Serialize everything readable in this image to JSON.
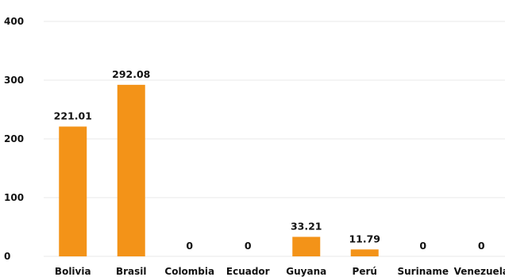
{
  "chart_data": {
    "type": "bar",
    "title": "",
    "xlabel": "",
    "ylabel": "",
    "categories": [
      "Bolivia",
      "Brasil",
      "Colombia",
      "Ecuador",
      "Guyana",
      "Perú",
      "Suriname",
      "Venezuela"
    ],
    "values": [
      221.01,
      292.08,
      0,
      0,
      33.21,
      11.79,
      0,
      0
    ],
    "value_labels": [
      "221.01",
      "292.08",
      "0",
      "0",
      "33.21",
      "11.79",
      "0",
      "0"
    ],
    "ylim": [
      0,
      400
    ],
    "yticks": [
      0,
      100,
      200,
      300,
      400
    ],
    "grid": true,
    "legend": "none",
    "bar_color": "#F39318"
  }
}
